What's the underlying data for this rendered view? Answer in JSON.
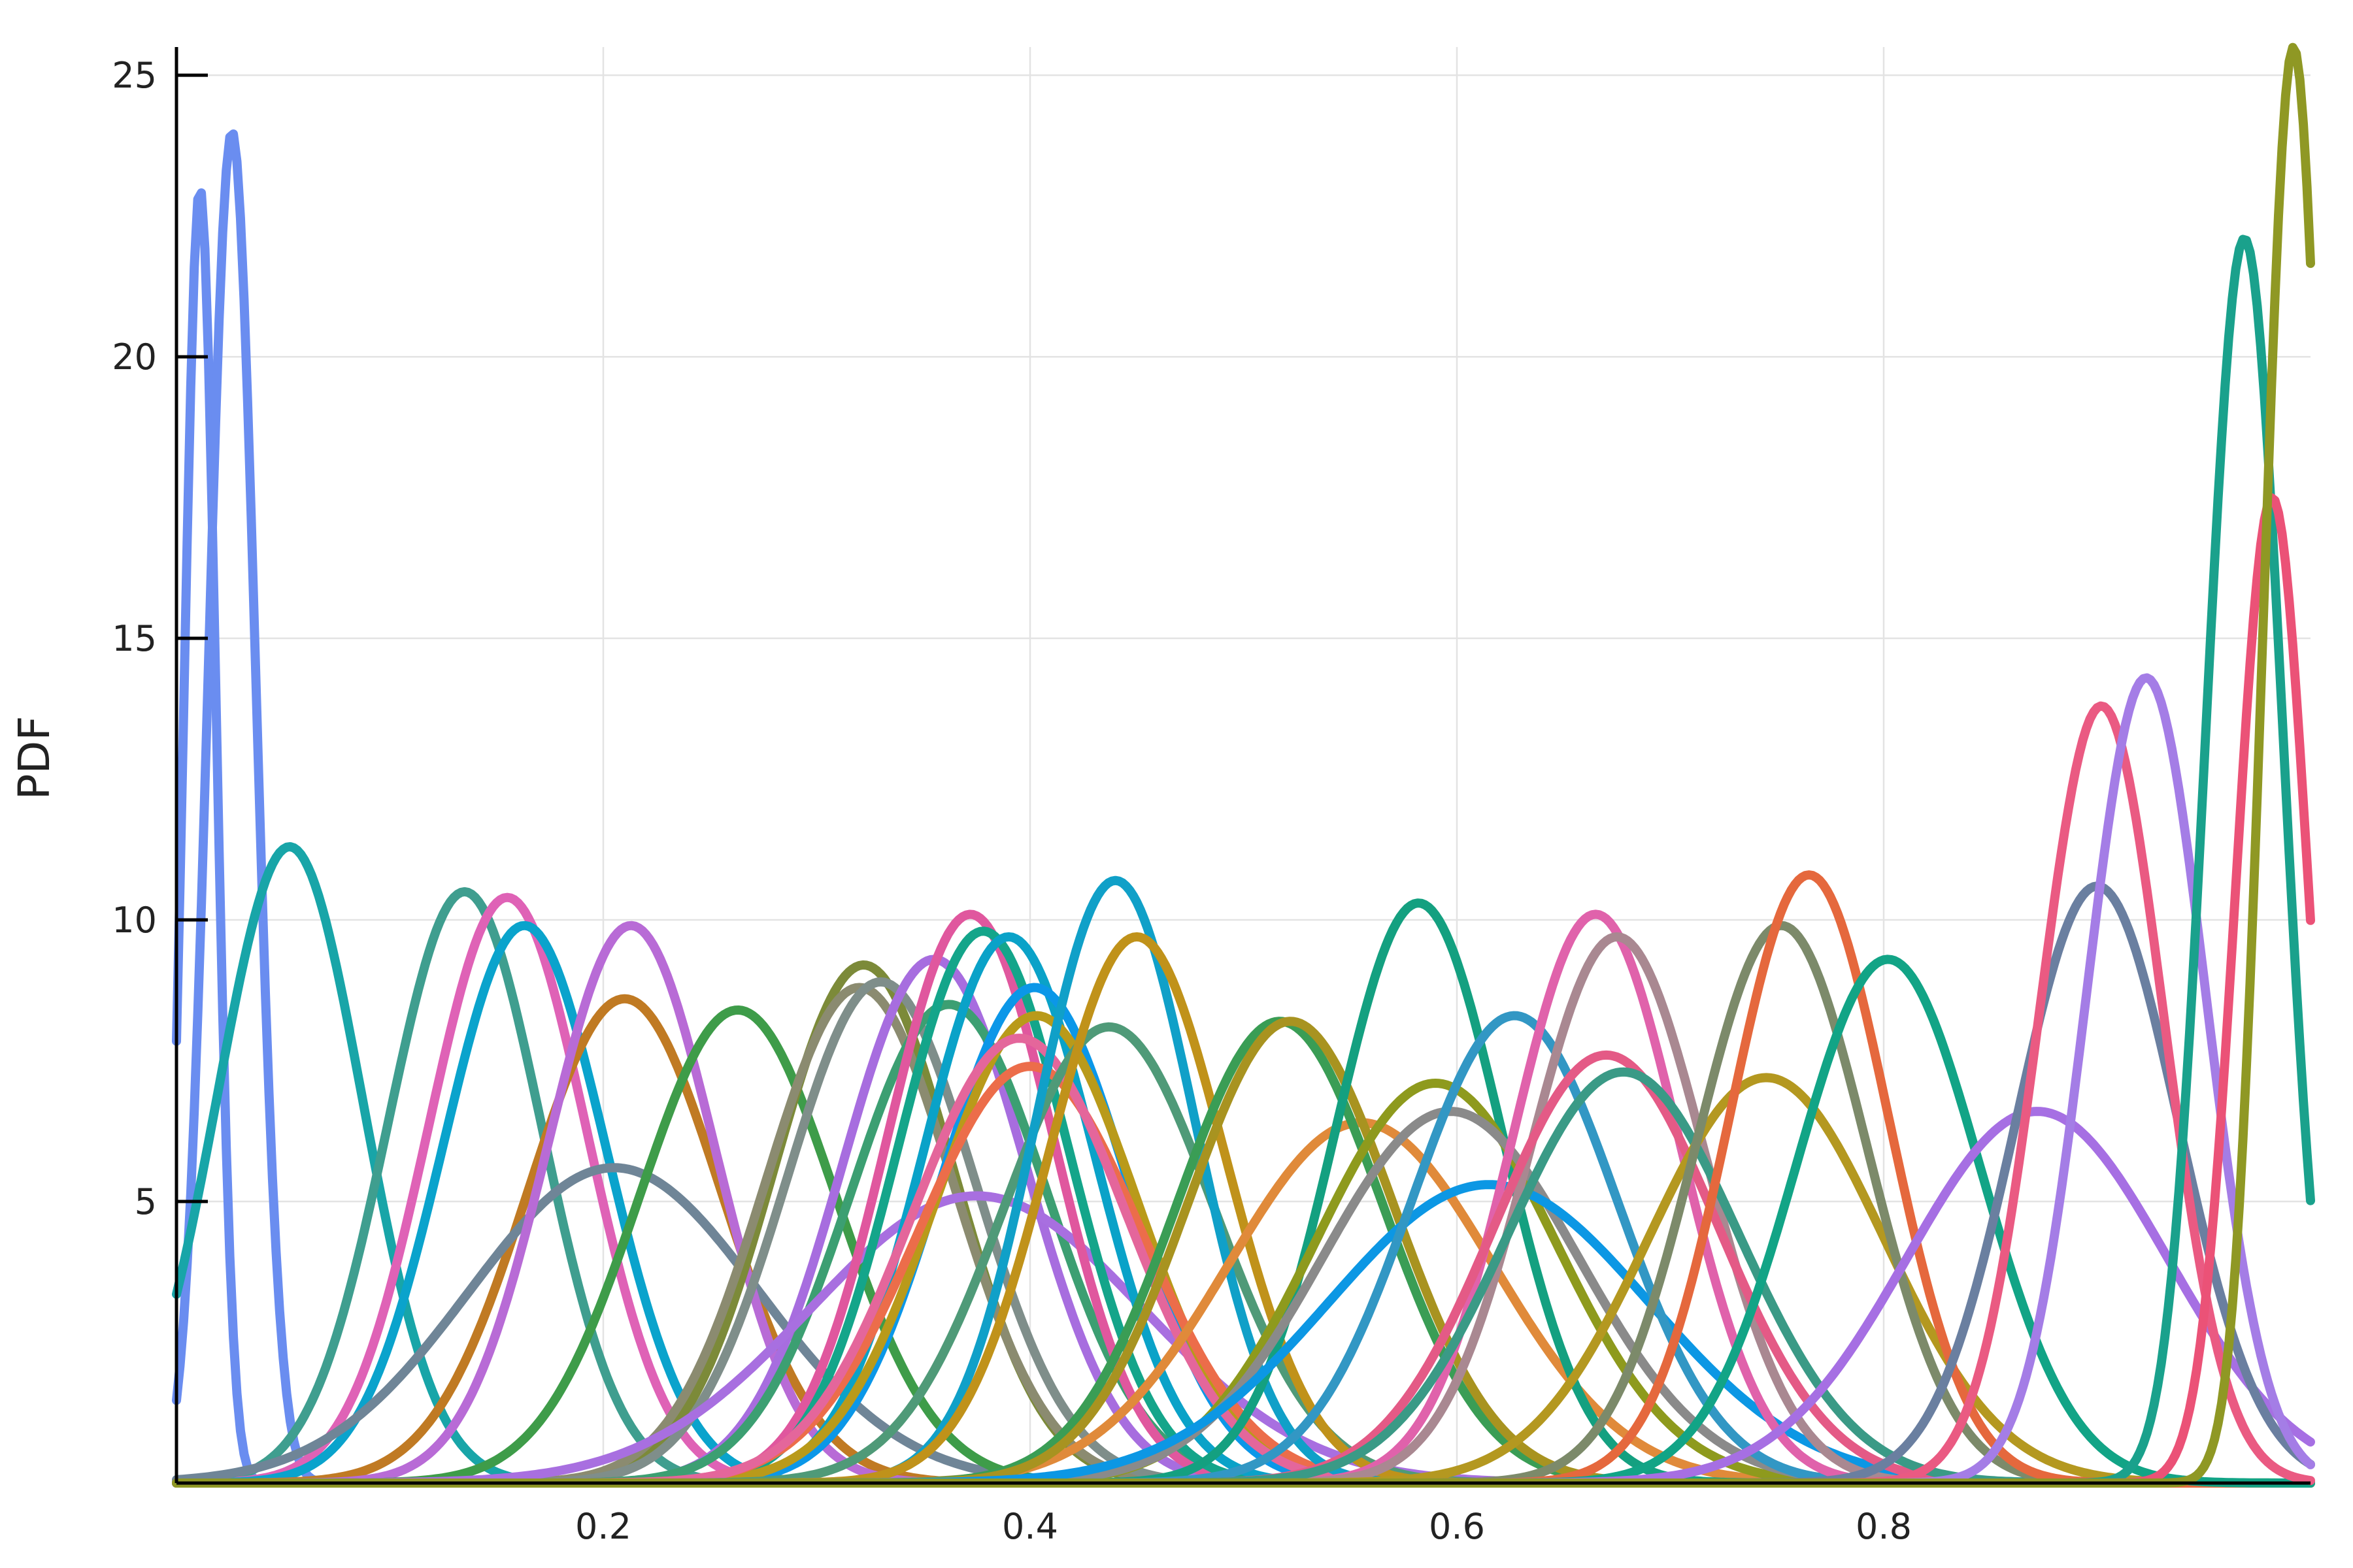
{
  "chart_data": {
    "type": "line",
    "title": "",
    "xlabel": "",
    "ylabel": "PDF",
    "xlim": [
      0,
      1
    ],
    "ylim": [
      0,
      25.5
    ],
    "xticks": [
      0.2,
      0.4,
      0.6,
      0.8
    ],
    "xtick_labels": [
      "0.2",
      "0.4",
      "0.6",
      "0.8"
    ],
    "yticks": [
      5,
      10,
      15,
      20,
      25
    ],
    "ytick_labels": [
      "5",
      "10",
      "15",
      "20",
      "25"
    ],
    "grid": true,
    "legend": "none",
    "series": [
      {
        "color": "#6a8df0",
        "peak_x": 0.011,
        "peak_y": 23.0,
        "sd": 0.0075
      },
      {
        "color": "#6a8df0",
        "peak_x": 0.026,
        "peak_y": 24.0,
        "sd": 0.011
      },
      {
        "color": "#18a5a8",
        "peak_x": 0.053,
        "peak_y": 11.3,
        "sd": 0.034
      },
      {
        "color": "#3f9e8f",
        "peak_x": 0.135,
        "peak_y": 10.5,
        "sd": 0.036
      },
      {
        "color": "#df62b6",
        "peak_x": 0.155,
        "peak_y": 10.4,
        "sd": 0.037
      },
      {
        "color": "#0aa3cc",
        "peak_x": 0.163,
        "peak_y": 9.9,
        "sd": 0.038
      },
      {
        "color": "#c07a23",
        "peak_x": 0.21,
        "peak_y": 8.6,
        "sd": 0.045
      },
      {
        "color": "#6f8597",
        "peak_x": 0.205,
        "peak_y": 5.6,
        "sd": 0.068
      },
      {
        "color": "#b86bd6",
        "peak_x": 0.213,
        "peak_y": 9.9,
        "sd": 0.039
      },
      {
        "color": "#3e9c49",
        "peak_x": 0.263,
        "peak_y": 8.4,
        "sd": 0.046
      },
      {
        "color": "#7c8a39",
        "peak_x": 0.322,
        "peak_y": 9.2,
        "sd": 0.042
      },
      {
        "color": "#8b8b70",
        "peak_x": 0.32,
        "peak_y": 8.8,
        "sd": 0.044
      },
      {
        "color": "#7f8e8a",
        "peak_x": 0.33,
        "peak_y": 8.9,
        "sd": 0.044
      },
      {
        "color": "#a76ddf",
        "peak_x": 0.355,
        "peak_y": 9.3,
        "sd": 0.043
      },
      {
        "color": "#3c9f72",
        "peak_x": 0.362,
        "peak_y": 8.5,
        "sd": 0.046
      },
      {
        "color": "#a86fe0",
        "peak_x": 0.375,
        "peak_y": 5.1,
        "sd": 0.078
      },
      {
        "color": "#e0579e",
        "peak_x": 0.372,
        "peak_y": 10.1,
        "sd": 0.039
      },
      {
        "color": "#14a58a",
        "peak_x": 0.378,
        "peak_y": 9.8,
        "sd": 0.04
      },
      {
        "color": "#0aa2c8",
        "peak_x": 0.39,
        "peak_y": 9.7,
        "sd": 0.04
      },
      {
        "color": "#0b97e8",
        "peak_x": 0.402,
        "peak_y": 8.8,
        "sd": 0.044
      },
      {
        "color": "#b99a1a",
        "peak_x": 0.403,
        "peak_y": 8.3,
        "sd": 0.047
      },
      {
        "color": "#ec6d4a",
        "peak_x": 0.4,
        "peak_y": 7.4,
        "sd": 0.052
      },
      {
        "color": "#e4669b",
        "peak_x": 0.395,
        "peak_y": 7.9,
        "sd": 0.05
      },
      {
        "color": "#4f9a78",
        "peak_x": 0.437,
        "peak_y": 8.1,
        "sd": 0.049
      },
      {
        "color": "#10a0c8",
        "peak_x": 0.44,
        "peak_y": 10.7,
        "sd": 0.037
      },
      {
        "color": "#c0921a",
        "peak_x": 0.45,
        "peak_y": 9.7,
        "sd": 0.041
      },
      {
        "color": "#e08a3a",
        "peak_x": 0.555,
        "peak_y": 6.4,
        "sd": 0.062
      },
      {
        "color": "#3a9d55",
        "peak_x": 0.517,
        "peak_y": 8.2,
        "sd": 0.048
      },
      {
        "color": "#a89320",
        "peak_x": 0.522,
        "peak_y": 8.2,
        "sd": 0.048
      },
      {
        "color": "#14a080",
        "peak_x": 0.582,
        "peak_y": 10.3,
        "sd": 0.039
      },
      {
        "color": "#8e9a1d",
        "peak_x": 0.59,
        "peak_y": 7.1,
        "sd": 0.056
      },
      {
        "color": "#8a8a8a",
        "peak_x": 0.597,
        "peak_y": 6.6,
        "sd": 0.06
      },
      {
        "color": "#0c97e4",
        "peak_x": 0.615,
        "peak_y": 5.3,
        "sd": 0.075
      },
      {
        "color": "#3297c4",
        "peak_x": 0.627,
        "peak_y": 8.3,
        "sd": 0.048
      },
      {
        "color": "#e062ab",
        "peak_x": 0.665,
        "peak_y": 10.1,
        "sd": 0.039
      },
      {
        "color": "#a98891",
        "peak_x": 0.675,
        "peak_y": 9.7,
        "sd": 0.041
      },
      {
        "color": "#e45a86",
        "peak_x": 0.67,
        "peak_y": 7.6,
        "sd": 0.052
      },
      {
        "color": "#3a9a86",
        "peak_x": 0.678,
        "peak_y": 7.3,
        "sd": 0.054
      },
      {
        "color": "#b49820",
        "peak_x": 0.745,
        "peak_y": 7.2,
        "sd": 0.055
      },
      {
        "color": "#7c8a6a",
        "peak_x": 0.752,
        "peak_y": 9.9,
        "sd": 0.04
      },
      {
        "color": "#e5683d",
        "peak_x": 0.765,
        "peak_y": 10.8,
        "sd": 0.037
      },
      {
        "color": "#12a486",
        "peak_x": 0.802,
        "peak_y": 9.3,
        "sd": 0.043
      },
      {
        "color": "#a66fe3",
        "peak_x": 0.872,
        "peak_y": 6.6,
        "sd": 0.061
      },
      {
        "color": "#6a7fa0",
        "peak_x": 0.9,
        "peak_y": 10.6,
        "sd": 0.038
      },
      {
        "color": "#ea5a82",
        "peak_x": 0.902,
        "peak_y": 13.8,
        "sd": 0.029
      },
      {
        "color": "#a47de6",
        "peak_x": 0.923,
        "peak_y": 14.3,
        "sd": 0.028
      },
      {
        "color": "#1aa18c",
        "peak_x": 0.969,
        "peak_y": 22.1,
        "sd": 0.018
      },
      {
        "color": "#eb5277",
        "peak_x": 0.982,
        "peak_y": 17.5,
        "sd": 0.017
      },
      {
        "color": "#8f9824",
        "peak_x": 0.992,
        "peak_y": 25.5,
        "sd": 0.014
      }
    ]
  }
}
